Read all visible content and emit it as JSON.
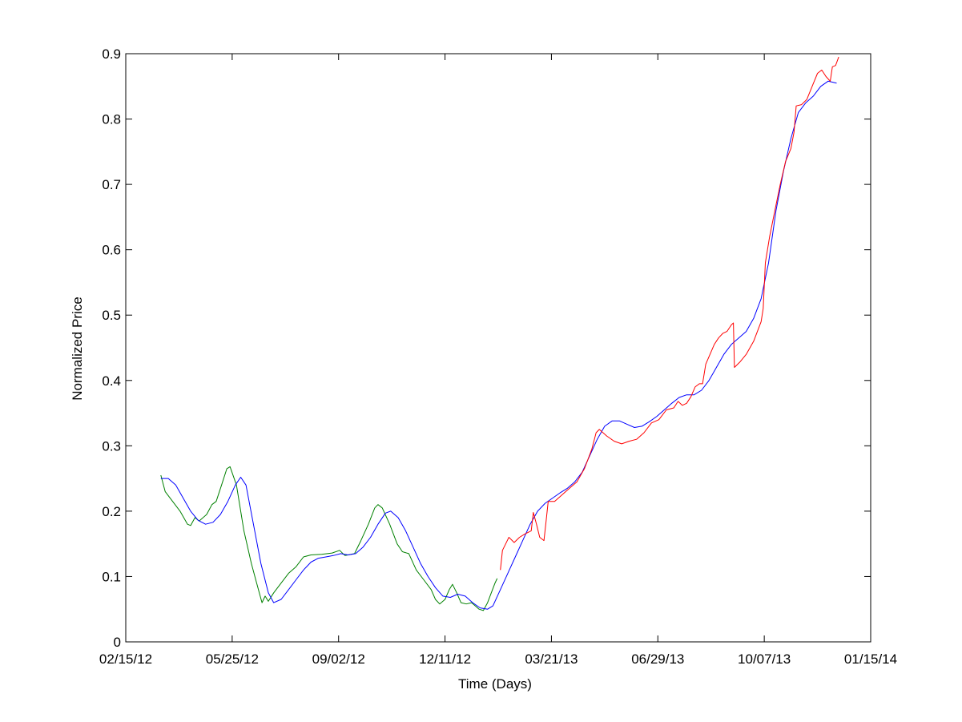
{
  "chart_data": {
    "type": "line",
    "title": "",
    "xlabel": "Time (Days)",
    "ylabel": "Normalized Price",
    "xlim": [
      "2012-02-15",
      "2014-01-15"
    ],
    "ylim": [
      0,
      0.9
    ],
    "x_ticks": [
      {
        "date": "2012-02-15",
        "label": "02/15/12"
      },
      {
        "date": "2012-05-25",
        "label": "05/25/12"
      },
      {
        "date": "2012-09-02",
        "label": "09/02/12"
      },
      {
        "date": "2012-12-11",
        "label": "12/11/12"
      },
      {
        "date": "2013-03-21",
        "label": "03/21/13"
      },
      {
        "date": "2013-06-29",
        "label": "06/29/13"
      },
      {
        "date": "2013-10-07",
        "label": "10/07/13"
      },
      {
        "date": "2014-01-15",
        "label": "01/15/14"
      }
    ],
    "y_ticks": [
      {
        "value": 0,
        "label": "0"
      },
      {
        "value": 0.1,
        "label": "0.1"
      },
      {
        "value": 0.2,
        "label": "0.2"
      },
      {
        "value": 0.3,
        "label": "0.3"
      },
      {
        "value": 0.4,
        "label": "0.4"
      },
      {
        "value": 0.5,
        "label": "0.5"
      },
      {
        "value": 0.6,
        "label": "0.6"
      },
      {
        "value": 0.7,
        "label": "0.7"
      },
      {
        "value": 0.8,
        "label": "0.8"
      },
      {
        "value": 0.9,
        "label": "0.9"
      }
    ],
    "grid": false,
    "legend": "none",
    "series": [
      {
        "color": "#008000",
        "points": [
          [
            "2012-03-19",
            0.255
          ],
          [
            "2012-03-23",
            0.23
          ],
          [
            "2012-03-30",
            0.215
          ],
          [
            "2012-04-06",
            0.2
          ],
          [
            "2012-04-13",
            0.18
          ],
          [
            "2012-04-16",
            0.178
          ],
          [
            "2012-04-20",
            0.19
          ],
          [
            "2012-04-24",
            0.185
          ],
          [
            "2012-05-01",
            0.195
          ],
          [
            "2012-05-06",
            0.21
          ],
          [
            "2012-05-10",
            0.215
          ],
          [
            "2012-05-15",
            0.24
          ],
          [
            "2012-05-20",
            0.265
          ],
          [
            "2012-05-23",
            0.268
          ],
          [
            "2012-05-29",
            0.24
          ],
          [
            "2012-06-05",
            0.17
          ],
          [
            "2012-06-12",
            0.12
          ],
          [
            "2012-06-17",
            0.09
          ],
          [
            "2012-06-22",
            0.06
          ],
          [
            "2012-06-25",
            0.07
          ],
          [
            "2012-06-28",
            0.062
          ],
          [
            "2012-07-03",
            0.075
          ],
          [
            "2012-07-10",
            0.09
          ],
          [
            "2012-07-17",
            0.105
          ],
          [
            "2012-07-24",
            0.115
          ],
          [
            "2012-07-31",
            0.13
          ],
          [
            "2012-08-07",
            0.133
          ],
          [
            "2012-08-17",
            0.134
          ],
          [
            "2012-08-27",
            0.136
          ],
          [
            "2012-09-03",
            0.14
          ],
          [
            "2012-09-08",
            0.132
          ],
          [
            "2012-09-17",
            0.135
          ],
          [
            "2012-09-23",
            0.155
          ],
          [
            "2012-09-30",
            0.18
          ],
          [
            "2012-10-06",
            0.205
          ],
          [
            "2012-10-09",
            0.21
          ],
          [
            "2012-10-13",
            0.205
          ],
          [
            "2012-10-20",
            0.18
          ],
          [
            "2012-10-27",
            0.15
          ],
          [
            "2012-11-01",
            0.138
          ],
          [
            "2012-11-07",
            0.135
          ],
          [
            "2012-11-14",
            0.11
          ],
          [
            "2012-11-21",
            0.095
          ],
          [
            "2012-11-28",
            0.08
          ],
          [
            "2012-12-02",
            0.065
          ],
          [
            "2012-12-06",
            0.058
          ],
          [
            "2012-12-11",
            0.065
          ],
          [
            "2012-12-15",
            0.08
          ],
          [
            "2012-12-18",
            0.088
          ],
          [
            "2012-12-22",
            0.075
          ],
          [
            "2012-12-26",
            0.06
          ],
          [
            "2012-12-31",
            0.058
          ],
          [
            "2013-01-05",
            0.06
          ],
          [
            "2013-01-12",
            0.05
          ],
          [
            "2013-01-16",
            0.048
          ],
          [
            "2013-01-20",
            0.06
          ],
          [
            "2013-01-27",
            0.09
          ],
          [
            "2013-01-29",
            0.097
          ]
        ]
      },
      {
        "color": "#0000ff",
        "points": [
          [
            "2012-03-19",
            0.25
          ],
          [
            "2012-03-26",
            0.25
          ],
          [
            "2012-04-02",
            0.24
          ],
          [
            "2012-04-09",
            0.22
          ],
          [
            "2012-04-16",
            0.2
          ],
          [
            "2012-04-23",
            0.186
          ],
          [
            "2012-04-30",
            0.18
          ],
          [
            "2012-05-07",
            0.183
          ],
          [
            "2012-05-14",
            0.195
          ],
          [
            "2012-05-21",
            0.215
          ],
          [
            "2012-05-28",
            0.24
          ],
          [
            "2012-06-02",
            0.252
          ],
          [
            "2012-06-07",
            0.24
          ],
          [
            "2012-06-14",
            0.18
          ],
          [
            "2012-06-21",
            0.12
          ],
          [
            "2012-06-28",
            0.075
          ],
          [
            "2012-07-03",
            0.06
          ],
          [
            "2012-07-10",
            0.065
          ],
          [
            "2012-07-17",
            0.08
          ],
          [
            "2012-07-24",
            0.095
          ],
          [
            "2012-07-31",
            0.11
          ],
          [
            "2012-08-07",
            0.122
          ],
          [
            "2012-08-14",
            0.128
          ],
          [
            "2012-08-21",
            0.13
          ],
          [
            "2012-08-28",
            0.132
          ],
          [
            "2012-09-04",
            0.135
          ],
          [
            "2012-09-11",
            0.133
          ],
          [
            "2012-09-18",
            0.135
          ],
          [
            "2012-09-25",
            0.145
          ],
          [
            "2012-10-02",
            0.16
          ],
          [
            "2012-10-09",
            0.18
          ],
          [
            "2012-10-16",
            0.197
          ],
          [
            "2012-10-21",
            0.2
          ],
          [
            "2012-10-28",
            0.19
          ],
          [
            "2012-11-04",
            0.17
          ],
          [
            "2012-11-11",
            0.145
          ],
          [
            "2012-11-18",
            0.12
          ],
          [
            "2012-11-25",
            0.1
          ],
          [
            "2012-12-02",
            0.083
          ],
          [
            "2012-12-09",
            0.07
          ],
          [
            "2012-12-16",
            0.068
          ],
          [
            "2012-12-23",
            0.073
          ],
          [
            "2012-12-30",
            0.07
          ],
          [
            "2013-01-06",
            0.06
          ],
          [
            "2013-01-13",
            0.052
          ],
          [
            "2013-01-20",
            0.05
          ],
          [
            "2013-01-25",
            0.055
          ],
          [
            "2013-02-01",
            0.08
          ],
          [
            "2013-02-08",
            0.105
          ],
          [
            "2013-02-15",
            0.13
          ],
          [
            "2013-02-22",
            0.155
          ],
          [
            "2013-03-01",
            0.18
          ],
          [
            "2013-03-08",
            0.2
          ],
          [
            "2013-03-15",
            0.212
          ],
          [
            "2013-03-22",
            0.22
          ],
          [
            "2013-03-29",
            0.228
          ],
          [
            "2013-04-05",
            0.235
          ],
          [
            "2013-04-12",
            0.245
          ],
          [
            "2013-04-19",
            0.26
          ],
          [
            "2013-04-26",
            0.285
          ],
          [
            "2013-05-03",
            0.31
          ],
          [
            "2013-05-10",
            0.33
          ],
          [
            "2013-05-17",
            0.338
          ],
          [
            "2013-05-24",
            0.338
          ],
          [
            "2013-05-31",
            0.333
          ],
          [
            "2013-06-07",
            0.328
          ],
          [
            "2013-06-14",
            0.33
          ],
          [
            "2013-06-21",
            0.337
          ],
          [
            "2013-06-28",
            0.345
          ],
          [
            "2013-07-05",
            0.355
          ],
          [
            "2013-07-12",
            0.365
          ],
          [
            "2013-07-19",
            0.374
          ],
          [
            "2013-07-26",
            0.378
          ],
          [
            "2013-08-02",
            0.378
          ],
          [
            "2013-08-09",
            0.385
          ],
          [
            "2013-08-16",
            0.4
          ],
          [
            "2013-08-23",
            0.42
          ],
          [
            "2013-08-30",
            0.44
          ],
          [
            "2013-09-06",
            0.455
          ],
          [
            "2013-09-13",
            0.465
          ],
          [
            "2013-09-20",
            0.475
          ],
          [
            "2013-09-27",
            0.495
          ],
          [
            "2013-10-04",
            0.525
          ],
          [
            "2013-10-11",
            0.58
          ],
          [
            "2013-10-18",
            0.66
          ],
          [
            "2013-10-25",
            0.72
          ],
          [
            "2013-11-01",
            0.77
          ],
          [
            "2013-11-08",
            0.81
          ],
          [
            "2013-11-15",
            0.825
          ],
          [
            "2013-11-22",
            0.835
          ],
          [
            "2013-11-29",
            0.85
          ],
          [
            "2013-12-06",
            0.858
          ],
          [
            "2013-12-14",
            0.855
          ]
        ]
      },
      {
        "color": "#ff0000",
        "points": [
          [
            "2013-02-01",
            0.11
          ],
          [
            "2013-02-03",
            0.14
          ],
          [
            "2013-02-06",
            0.15
          ],
          [
            "2013-02-09",
            0.16
          ],
          [
            "2013-02-14",
            0.152
          ],
          [
            "2013-02-19",
            0.16
          ],
          [
            "2013-02-24",
            0.165
          ],
          [
            "2013-03-02",
            0.17
          ],
          [
            "2013-03-04",
            0.198
          ],
          [
            "2013-03-07",
            0.18
          ],
          [
            "2013-03-10",
            0.16
          ],
          [
            "2013-03-14",
            0.155
          ],
          [
            "2013-03-16",
            0.185
          ],
          [
            "2013-03-18",
            0.215
          ],
          [
            "2013-03-24",
            0.215
          ],
          [
            "2013-03-31",
            0.225
          ],
          [
            "2013-04-07",
            0.235
          ],
          [
            "2013-04-14",
            0.245
          ],
          [
            "2013-04-21",
            0.265
          ],
          [
            "2013-04-28",
            0.295
          ],
          [
            "2013-05-02",
            0.32
          ],
          [
            "2013-05-05",
            0.325
          ],
          [
            "2013-05-12",
            0.315
          ],
          [
            "2013-05-19",
            0.307
          ],
          [
            "2013-05-26",
            0.303
          ],
          [
            "2013-06-02",
            0.307
          ],
          [
            "2013-06-09",
            0.31
          ],
          [
            "2013-06-16",
            0.32
          ],
          [
            "2013-06-23",
            0.335
          ],
          [
            "2013-06-30",
            0.34
          ],
          [
            "2013-07-07",
            0.355
          ],
          [
            "2013-07-14",
            0.358
          ],
          [
            "2013-07-18",
            0.368
          ],
          [
            "2013-07-22",
            0.362
          ],
          [
            "2013-07-26",
            0.365
          ],
          [
            "2013-07-30",
            0.375
          ],
          [
            "2013-08-03",
            0.39
          ],
          [
            "2013-08-07",
            0.395
          ],
          [
            "2013-08-10",
            0.395
          ],
          [
            "2013-08-13",
            0.425
          ],
          [
            "2013-08-17",
            0.44
          ],
          [
            "2013-08-21",
            0.455
          ],
          [
            "2013-08-25",
            0.465
          ],
          [
            "2013-08-29",
            0.472
          ],
          [
            "2013-09-02",
            0.475
          ],
          [
            "2013-09-06",
            0.485
          ],
          [
            "2013-09-08",
            0.488
          ],
          [
            "2013-09-09",
            0.42
          ],
          [
            "2013-09-14",
            0.428
          ],
          [
            "2013-09-20",
            0.44
          ],
          [
            "2013-09-27",
            0.46
          ],
          [
            "2013-10-04",
            0.49
          ],
          [
            "2013-10-06",
            0.51
          ],
          [
            "2013-10-08",
            0.58
          ],
          [
            "2013-10-12",
            0.62
          ],
          [
            "2013-10-17",
            0.66
          ],
          [
            "2013-10-22",
            0.7
          ],
          [
            "2013-10-27",
            0.735
          ],
          [
            "2013-11-01",
            0.755
          ],
          [
            "2013-11-04",
            0.78
          ],
          [
            "2013-11-06",
            0.82
          ],
          [
            "2013-11-11",
            0.822
          ],
          [
            "2013-11-16",
            0.83
          ],
          [
            "2013-11-21",
            0.85
          ],
          [
            "2013-11-26",
            0.87
          ],
          [
            "2013-11-30",
            0.875
          ],
          [
            "2013-12-04",
            0.865
          ],
          [
            "2013-12-08",
            0.858
          ],
          [
            "2013-12-10",
            0.88
          ],
          [
            "2013-12-13",
            0.882
          ],
          [
            "2013-12-16",
            0.895
          ]
        ]
      }
    ]
  }
}
